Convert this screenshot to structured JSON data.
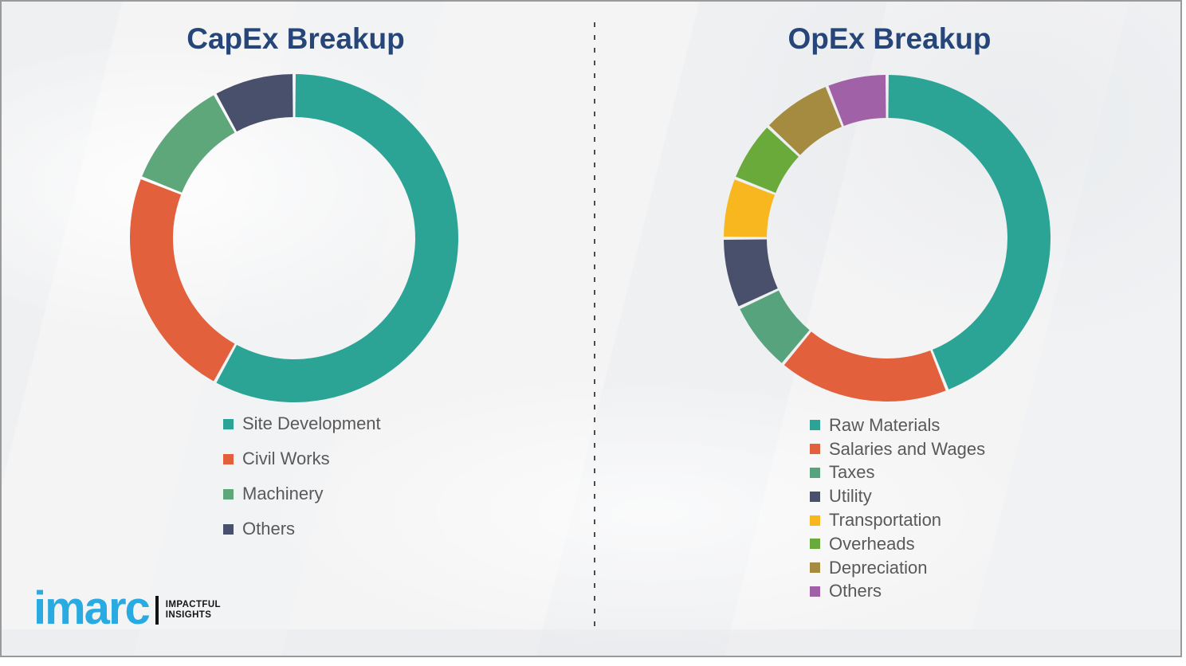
{
  "slide": {
    "background_color": "#f4f4f5",
    "border_color": "#9a9a9a",
    "divider_style": "vertical dashed dark-gray line between the two charts"
  },
  "titles": {
    "color": "#264679"
  },
  "chart_data": [
    {
      "id": "capex",
      "type": "pie",
      "subtype": "donut",
      "title": "CapEx Breakup",
      "labels": [
        "Site Development",
        "Civil Works",
        "Machinery",
        "Others"
      ],
      "values": [
        58,
        23,
        11,
        8
      ],
      "value_unit": "percent-estimated-from-arc-angles",
      "colors": [
        "#2BA496",
        "#E2603C",
        "#5EA77A",
        "#49506B"
      ],
      "start_angle_deg": 0,
      "direction": "clockwise",
      "legend_position": "below-left",
      "data_labels_shown": false
    },
    {
      "id": "opex",
      "type": "pie",
      "subtype": "donut",
      "title": "OpEx Breakup",
      "labels": [
        "Raw Materials",
        "Salaries and Wages",
        "Taxes",
        "Utility",
        "Transportation",
        "Overheads",
        "Depreciation",
        "Others"
      ],
      "values": [
        44,
        17,
        7,
        7,
        6,
        6,
        7,
        6
      ],
      "value_unit": "percent-estimated-from-arc-angles",
      "colors": [
        "#2BA496",
        "#E2603C",
        "#57A37D",
        "#49506B",
        "#F8B71E",
        "#6AAA3B",
        "#A58B40",
        "#A061A6"
      ],
      "start_angle_deg": 0,
      "direction": "clockwise",
      "legend_position": "below-left",
      "data_labels_shown": false
    }
  ],
  "legend_text_color": "#595959",
  "logo": {
    "brand": "imarc",
    "brand_color": "#29ABE2",
    "tagline_line1": "IMPACTFUL",
    "tagline_line2": "INSIGHTS"
  }
}
